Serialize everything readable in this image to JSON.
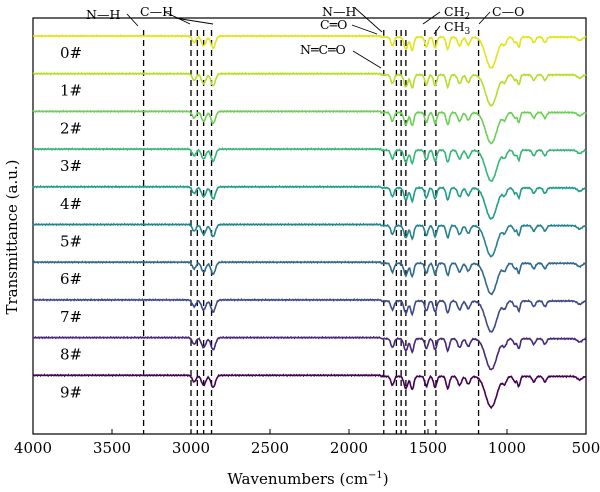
{
  "chart_data": {
    "type": "line",
    "title": "",
    "xlabel": "Wavenumbers (cm⁻¹)",
    "xlabel_parts": {
      "main": "Wavenumbers (cm",
      "sup": "−1",
      "close": ")"
    },
    "ylabel": "Transmittance (a.u.)",
    "xlim": [
      4000,
      500
    ],
    "x_reversed": true,
    "xticks": [
      4000,
      3500,
      3000,
      2500,
      2000,
      1500,
      1000,
      500
    ],
    "y_ticks_shown": false,
    "grid": false,
    "legend": "none",
    "series": [
      {
        "name": "0#",
        "color": "#e2e418"
      },
      {
        "name": "1#",
        "color": "#b5de2b"
      },
      {
        "name": "2#",
        "color": "#6ece58"
      },
      {
        "name": "3#",
        "color": "#35b779"
      },
      {
        "name": "4#",
        "color": "#1f9e89"
      },
      {
        "name": "5#",
        "color": "#26828e"
      },
      {
        "name": "6#",
        "color": "#31688e"
      },
      {
        "name": "7#",
        "color": "#3e4989"
      },
      {
        "name": "8#",
        "color": "#482878"
      },
      {
        "name": "9#",
        "color": "#440154"
      }
    ],
    "absorption_bands": [
      {
        "x": 2920,
        "depth": 0.45,
        "width": 14
      },
      {
        "x": 2860,
        "depth": 0.55,
        "width": 14
      },
      {
        "x": 2980,
        "depth": 0.3,
        "width": 12
      },
      {
        "x": 1725,
        "depth": 0.4,
        "width": 10
      },
      {
        "x": 1640,
        "depth": 0.55,
        "width": 12
      },
      {
        "x": 1600,
        "depth": 0.6,
        "width": 10
      },
      {
        "x": 1510,
        "depth": 0.45,
        "width": 10
      },
      {
        "x": 1455,
        "depth": 0.5,
        "width": 10
      },
      {
        "x": 1375,
        "depth": 0.55,
        "width": 10
      },
      {
        "x": 1300,
        "depth": 0.4,
        "width": 12
      },
      {
        "x": 1245,
        "depth": 0.35,
        "width": 12
      },
      {
        "x": 1100,
        "depth": 1.4,
        "width": 35
      },
      {
        "x": 1015,
        "depth": 0.3,
        "width": 12
      },
      {
        "x": 950,
        "depth": 0.25,
        "width": 10
      },
      {
        "x": 925,
        "depth": 0.45,
        "width": 8
      },
      {
        "x": 830,
        "depth": 0.25,
        "width": 10
      },
      {
        "x": 760,
        "depth": 0.25,
        "width": 10
      },
      {
        "x": 540,
        "depth": 0.15,
        "width": 15
      }
    ],
    "reference_lines": [
      3300,
      3000,
      2960,
      2920,
      2870,
      1780,
      1700,
      1670,
      1640,
      1520,
      1450,
      1180
    ],
    "annotations": [
      {
        "key": "nh1",
        "text": "N—H"
      },
      {
        "key": "ch",
        "text": "C—H"
      },
      {
        "key": "nh2",
        "text": "N—H"
      },
      {
        "key": "co1",
        "text": "C═O"
      },
      {
        "key": "nco",
        "text": "N═C═O"
      },
      {
        "key": "ch2",
        "text": "CH",
        "sub": "2"
      },
      {
        "key": "ch3",
        "text": "CH",
        "sub": "3"
      },
      {
        "key": "co2",
        "text": "C—O"
      }
    ]
  }
}
